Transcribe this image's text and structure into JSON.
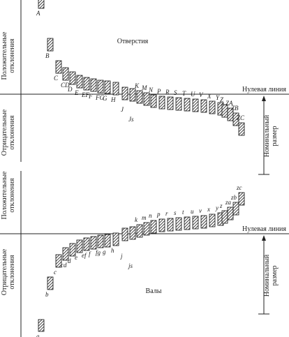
{
  "holes": {
    "title": "Отверстия",
    "zero_line": "Нулевая линия",
    "positive": [
      "Положительные",
      "отклонения"
    ],
    "negative": [
      "Отрицательные",
      "отклонения"
    ],
    "nominal": [
      "Номинальный",
      "размер"
    ],
    "labels": [
      "A",
      "B",
      "C",
      "CD",
      "D",
      "E",
      "EF",
      "F",
      "FG",
      "G",
      "H",
      "J",
      "Js",
      "K",
      "M",
      "N",
      "P",
      "R",
      "S",
      "T",
      "U",
      "V",
      "X",
      "Y",
      "Z",
      "ZA",
      "ZB",
      "ZC"
    ]
  },
  "shafts": {
    "title": "Валы",
    "zero_line": "Нулевая линия",
    "positive": [
      "Положительные",
      "отклонения"
    ],
    "negative": [
      "Отрицательные",
      "отклонения"
    ],
    "nominal": [
      "Номинальный",
      "размер"
    ],
    "labels": [
      "a",
      "b",
      "c",
      "cd",
      "d",
      "e",
      "ef",
      "f",
      "fg",
      "g",
      "h",
      "j",
      "js",
      "k",
      "m",
      "n",
      "p",
      "r",
      "s",
      "t",
      "u",
      "v",
      "x",
      "y",
      "z",
      "za",
      "zb",
      "zc"
    ]
  }
}
